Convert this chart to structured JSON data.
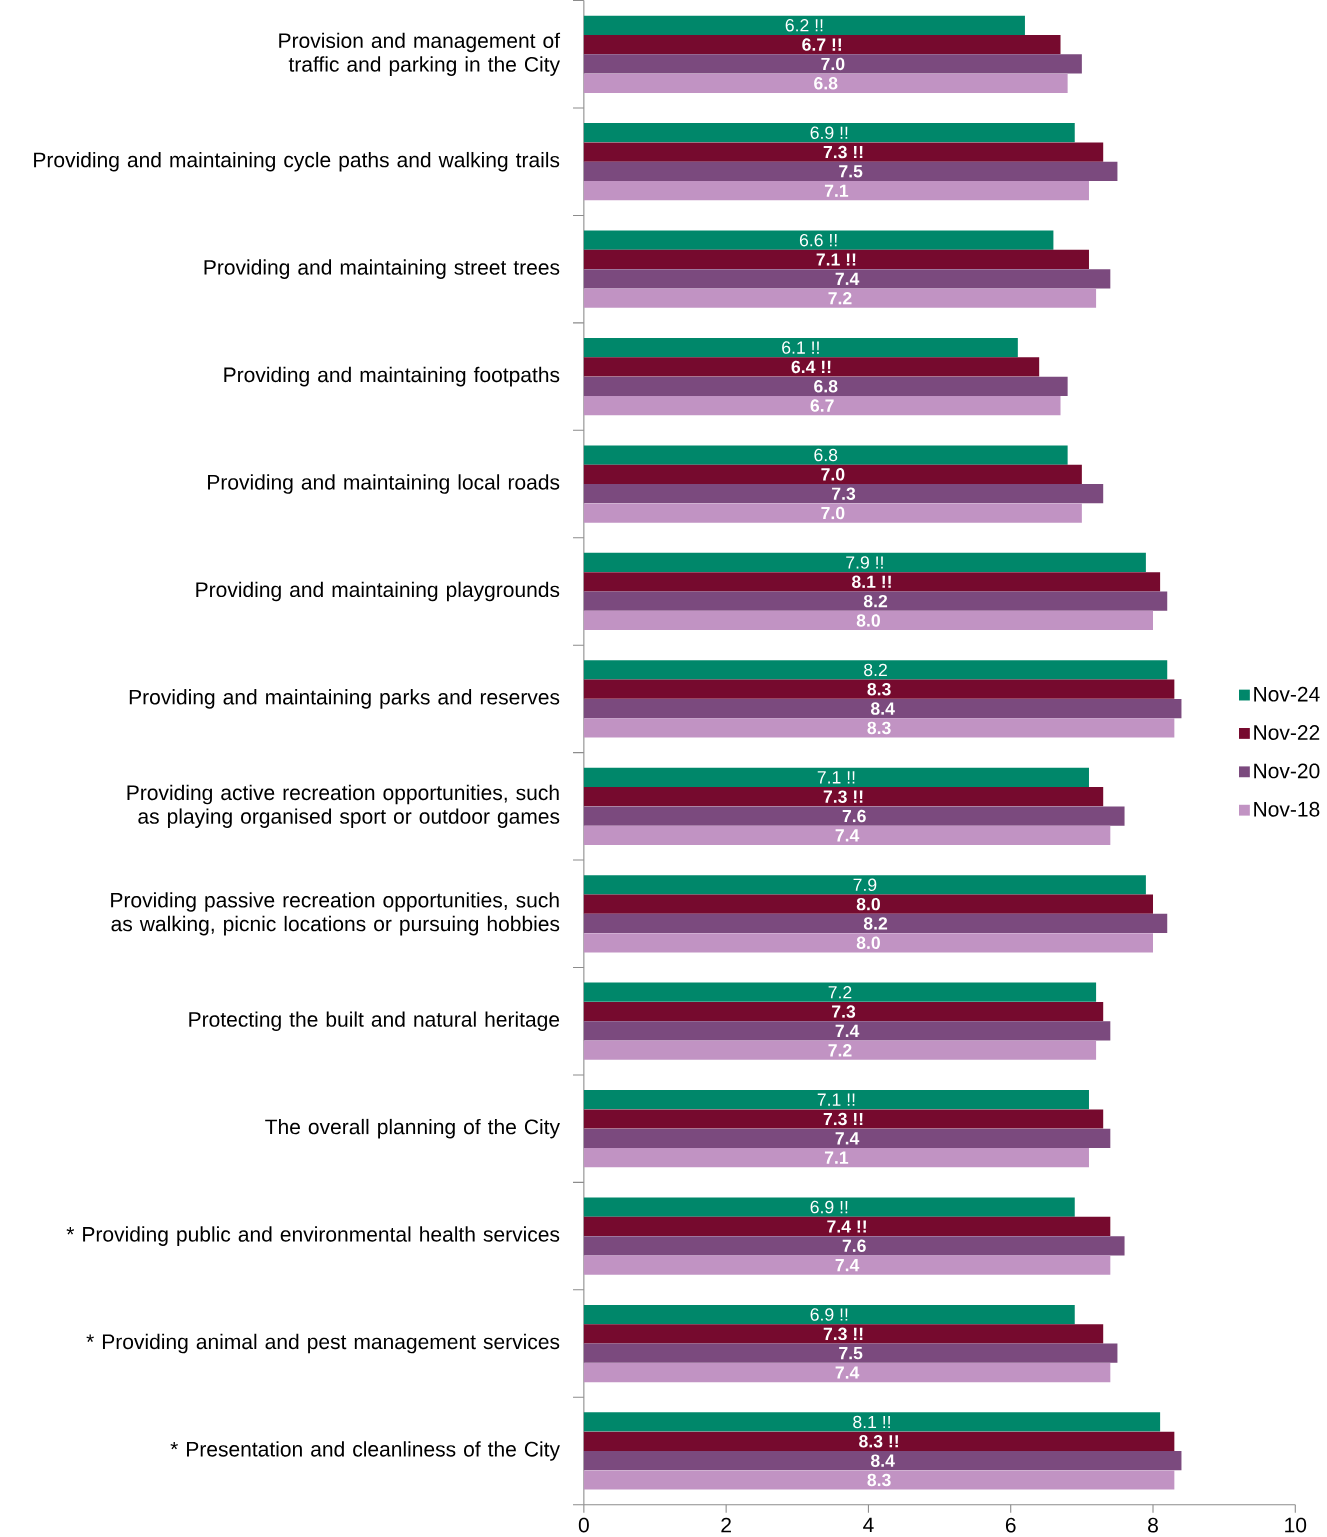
{
  "chart_data": {
    "type": "bar",
    "orientation": "horizontal",
    "categories": [
      "Provision and management of traffic and parking in the City",
      "Providing and maintaining cycle paths and walking trails",
      "Providing and maintaining street trees",
      "Providing and maintaining footpaths",
      "Providing and maintaining local roads",
      "Providing and maintaining playgrounds",
      "Providing and maintaining parks and reserves",
      "Providing active recreation opportunities, such as playing organised sport or outdoor games",
      "Providing passive recreation opportunities, such as walking, picnic locations or pursuing hobbies",
      "Protecting the built and natural heritage",
      "The overall planning of the City",
      "* Providing public and environmental health services",
      "* Providing animal and pest management services",
      "* Presentation and cleanliness of the City"
    ],
    "series": [
      {
        "name": "Nov-24",
        "color": "#00876a",
        "values": [
          6.2,
          6.9,
          6.6,
          6.1,
          6.8,
          7.9,
          8.2,
          7.1,
          7.9,
          7.2,
          7.1,
          6.9,
          6.9,
          8.1
        ],
        "value_labels": [
          "6.2 !!",
          "6.9 !!",
          "6.6 !!",
          "6.1 !!",
          "6.8",
          "7.9 !!",
          "8.2",
          "7.1 !!",
          "7.9",
          "7.2",
          "7.1 !!",
          "6.9 !!",
          "6.9 !!",
          "8.1 !!"
        ]
      },
      {
        "name": "Nov-22",
        "color": "#760a2e",
        "values": [
          6.7,
          7.3,
          7.1,
          6.4,
          7.0,
          8.1,
          8.3,
          7.3,
          8.0,
          7.3,
          7.3,
          7.4,
          7.3,
          8.3
        ],
        "value_labels": [
          "6.7 !!",
          "7.3 !!",
          "7.1 !!",
          "6.4 !!",
          "7.0",
          "8.1 !!",
          "8.3",
          "7.3 !!",
          "8.0",
          "7.3",
          "7.3 !!",
          "7.4 !!",
          "7.3 !!",
          "8.3 !!"
        ]
      },
      {
        "name": "Nov-20",
        "color": "#7b4a7e",
        "values": [
          7.0,
          7.5,
          7.4,
          6.8,
          7.3,
          8.2,
          8.4,
          7.6,
          8.2,
          7.4,
          7.4,
          7.6,
          7.5,
          8.4
        ],
        "value_labels": [
          "7.0",
          "7.5",
          "7.4",
          "6.8",
          "7.3",
          "8.2",
          "8.4",
          "7.6",
          "8.2",
          "7.4",
          "7.4",
          "7.6",
          "7.5",
          "8.4"
        ]
      },
      {
        "name": "Nov-18",
        "color": "#c193c3",
        "values": [
          6.8,
          7.1,
          7.2,
          6.7,
          7.0,
          8.0,
          8.3,
          7.4,
          8.0,
          7.2,
          7.1,
          7.4,
          7.4,
          8.3
        ],
        "value_labels": [
          "6.8",
          "7.1",
          "7.2",
          "6.7",
          "7.0",
          "8.0",
          "8.3",
          "7.4",
          "8.0",
          "7.2",
          "7.1",
          "7.4",
          "7.4",
          "8.3"
        ]
      }
    ],
    "xlim": [
      0,
      10
    ],
    "xticks": [
      0,
      2,
      4,
      6,
      8,
      10
    ],
    "grid": false,
    "legend": "right"
  }
}
